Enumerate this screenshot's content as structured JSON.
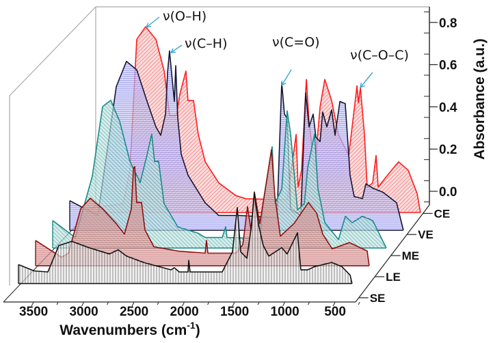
{
  "chart_data": {
    "type": "area",
    "style": "3d-waterfall",
    "xlabel": "Wavenumbers (cm",
    "xlabel_sup": "-1",
    "xlabel_close": ")",
    "ylabel": "Absorbance (a.u.)",
    "xlim": [
      3800,
      400
    ],
    "ylim": [
      0.0,
      0.8
    ],
    "x_ticks": [
      "3500",
      "3000",
      "2500",
      "2000",
      "1500",
      "1000",
      "500"
    ],
    "x_tick_values": [
      3500,
      3000,
      2500,
      2000,
      1500,
      1000,
      500
    ],
    "y_ticks": [
      "0.0",
      "0.2",
      "0.4",
      "0.6",
      "0.8"
    ],
    "y_tick_values": [
      0.0,
      0.2,
      0.4,
      0.6,
      0.8
    ],
    "grid": false,
    "annotations": [
      {
        "text": "ν(O–H)"
      },
      {
        "text": "ν(C–H)"
      },
      {
        "text": "ν(C=O)"
      },
      {
        "text": "ν(C–O–C)"
      }
    ],
    "annotation_color": "#3aa6d6",
    "series": [
      {
        "name": "SE",
        "color": "#111111",
        "fill": "#d8d8d8",
        "points": [
          [
            3800,
            0.09
          ],
          [
            3640,
            0.06
          ],
          [
            3500,
            0.055
          ],
          [
            3389,
            0.18
          ],
          [
            3256,
            0.2
          ],
          [
            3082,
            0.17
          ],
          [
            2873,
            0.14
          ],
          [
            2783,
            0.16
          ],
          [
            2699,
            0.13
          ],
          [
            2525,
            0.1
          ],
          [
            2246,
            0.065
          ],
          [
            2211,
            0.075
          ],
          [
            2162,
            0.055
          ],
          [
            2072,
            0.055
          ],
          [
            2065,
            0.11
          ],
          [
            2051,
            0.055
          ],
          [
            1723,
            0.055
          ],
          [
            1619,
            0.15
          ],
          [
            1570,
            0.36
          ],
          [
            1535,
            0.15
          ],
          [
            1472,
            0.12
          ],
          [
            1424,
            0.28
          ],
          [
            1396,
            0.43
          ],
          [
            1354,
            0.28
          ],
          [
            1305,
            0.18
          ],
          [
            1249,
            0.13
          ],
          [
            1117,
            0.17
          ],
          [
            1061,
            0.14
          ],
          [
            957,
            0.24
          ],
          [
            922,
            0.065
          ],
          [
            852,
            0.065
          ],
          [
            783,
            0.08
          ],
          [
            608,
            0.1
          ],
          [
            504,
            0.08
          ],
          [
            420,
            0.04
          ],
          [
            400,
            0
          ]
        ]
      },
      {
        "name": "LE",
        "color": "#8b1010",
        "fill": "#e2a9a9",
        "points": [
          [
            3800,
            0.12
          ],
          [
            3535,
            0.04
          ],
          [
            3465,
            0.06
          ],
          [
            3340,
            0.27
          ],
          [
            3242,
            0.32
          ],
          [
            3117,
            0.27
          ],
          [
            2978,
            0.2
          ],
          [
            2894,
            0.15
          ],
          [
            2824,
            0.27
          ],
          [
            2803,
            0.46
          ],
          [
            2789,
            0.47
          ],
          [
            2769,
            0.3
          ],
          [
            2720,
            0.3
          ],
          [
            2685,
            0.17
          ],
          [
            2594,
            0.09
          ],
          [
            2350,
            0.07
          ],
          [
            2072,
            0.06
          ],
          [
            2058,
            0.12
          ],
          [
            2044,
            0.06
          ],
          [
            1758,
            0.06
          ],
          [
            1688,
            0.1
          ],
          [
            1640,
            0.28
          ],
          [
            1605,
            0.17
          ],
          [
            1570,
            0.35
          ],
          [
            1514,
            0.2
          ],
          [
            1396,
            0.55
          ],
          [
            1361,
            0.33
          ],
          [
            1305,
            0.14
          ],
          [
            1166,
            0.2
          ],
          [
            1019,
            0.3
          ],
          [
            936,
            0.25
          ],
          [
            873,
            0.15
          ],
          [
            776,
            0.08
          ],
          [
            601,
            0.11
          ],
          [
            420,
            0.07
          ],
          [
            400,
            0
          ]
        ]
      },
      {
        "name": "ME",
        "color": "#1a8a86",
        "fill": "#a9dcd8",
        "points": [
          [
            3800,
            0.13
          ],
          [
            3570,
            0.05
          ],
          [
            3396,
            0.34
          ],
          [
            3291,
            0.67
          ],
          [
            3208,
            0.7
          ],
          [
            3117,
            0.6
          ],
          [
            3012,
            0.41
          ],
          [
            2908,
            0.31
          ],
          [
            2838,
            0.44
          ],
          [
            2790,
            0.54
          ],
          [
            2762,
            0.41
          ],
          [
            2720,
            0.41
          ],
          [
            2664,
            0.21
          ],
          [
            2525,
            0.1
          ],
          [
            2316,
            0.07
          ],
          [
            2246,
            0.05
          ],
          [
            2072,
            0.05
          ],
          [
            2037,
            0.1
          ],
          [
            2023,
            0.05
          ],
          [
            1688,
            0.045
          ],
          [
            1654,
            0.21
          ],
          [
            1563,
            0.48
          ],
          [
            1535,
            0.21
          ],
          [
            1465,
            0.28
          ],
          [
            1410,
            0.65
          ],
          [
            1375,
            0.54
          ],
          [
            1305,
            0.18
          ],
          [
            1235,
            0.21
          ],
          [
            1201,
            0.38
          ],
          [
            1131,
            0.54
          ],
          [
            1096,
            0.28
          ],
          [
            1026,
            0.12
          ],
          [
            887,
            0.04
          ],
          [
            817,
            0.15
          ],
          [
            748,
            0.12
          ],
          [
            643,
            0.15
          ],
          [
            538,
            0.13
          ],
          [
            400,
            0
          ]
        ]
      },
      {
        "name": "VE",
        "color": "#141433",
        "fill": "#b4b4f0",
        "points": [
          [
            3800,
            0.14
          ],
          [
            3514,
            0.07
          ],
          [
            3396,
            0.45
          ],
          [
            3326,
            0.68
          ],
          [
            3222,
            0.8
          ],
          [
            3117,
            0.76
          ],
          [
            3012,
            0.61
          ],
          [
            2922,
            0.49
          ],
          [
            2873,
            0.45
          ],
          [
            2824,
            0.55
          ],
          [
            2803,
            0.75
          ],
          [
            2783,
            0.85
          ],
          [
            2755,
            0.71
          ],
          [
            2734,
            0.61
          ],
          [
            2720,
            0.78
          ],
          [
            2699,
            0.53
          ],
          [
            2664,
            0.36
          ],
          [
            2594,
            0.26
          ],
          [
            2420,
            0.13
          ],
          [
            2281,
            0.07
          ],
          [
            2072,
            0.07
          ],
          [
            1688,
            0.06
          ],
          [
            1640,
            0.7
          ],
          [
            1612,
            0.55
          ],
          [
            1584,
            0.53
          ],
          [
            1549,
            0.1
          ],
          [
            1445,
            0.07
          ],
          [
            1396,
            0.65
          ],
          [
            1361,
            0.49
          ],
          [
            1319,
            0.55
          ],
          [
            1291,
            0.44
          ],
          [
            1249,
            0.42
          ],
          [
            1222,
            0.56
          ],
          [
            1180,
            0.49
          ],
          [
            1131,
            0.57
          ],
          [
            1096,
            0.45
          ],
          [
            1047,
            0.61
          ],
          [
            992,
            0.6
          ],
          [
            943,
            0.26
          ],
          [
            901,
            0.16
          ],
          [
            817,
            0.15
          ],
          [
            782,
            0.22
          ],
          [
            713,
            0.2
          ],
          [
            608,
            0.18
          ],
          [
            469,
            0.13
          ],
          [
            400,
            0
          ]
        ]
      },
      {
        "name": "CE",
        "color": "#ff1a1a",
        "fill": "#f7b3b3",
        "points": [
          [
            3800,
            0.02
          ],
          [
            3431,
            0.04
          ],
          [
            3361,
            0.2
          ],
          [
            3291,
            0.82
          ],
          [
            3201,
            0.88
          ],
          [
            3096,
            0.82
          ],
          [
            3012,
            0.67
          ],
          [
            2957,
            0.46
          ],
          [
            2887,
            0.46
          ],
          [
            2852,
            0.56
          ],
          [
            2790,
            0.67
          ],
          [
            2769,
            0.53
          ],
          [
            2713,
            0.53
          ],
          [
            2664,
            0.37
          ],
          [
            2594,
            0.24
          ],
          [
            2455,
            0.14
          ],
          [
            2281,
            0.08
          ],
          [
            2176,
            0.065
          ],
          [
            1758,
            0.06
          ],
          [
            1667,
            0.37
          ],
          [
            1647,
            0.12
          ],
          [
            1612,
            0.2
          ],
          [
            1563,
            0.63
          ],
          [
            1535,
            0.43
          ],
          [
            1479,
            0.2
          ],
          [
            1423,
            0.5
          ],
          [
            1375,
            0.63
          ],
          [
            1305,
            0.53
          ],
          [
            1236,
            0.37
          ],
          [
            1131,
            0.27
          ],
          [
            1047,
            0.6
          ],
          [
            1033,
            0.52
          ],
          [
            1012,
            0.59
          ],
          [
            971,
            0.37
          ],
          [
            943,
            0.12
          ],
          [
            887,
            0.14
          ],
          [
            852,
            0.27
          ],
          [
            831,
            0.12
          ],
          [
            748,
            0.17
          ],
          [
            622,
            0.24
          ],
          [
            525,
            0.2
          ],
          [
            434,
            0.09
          ],
          [
            400,
            0
          ]
        ]
      }
    ]
  }
}
